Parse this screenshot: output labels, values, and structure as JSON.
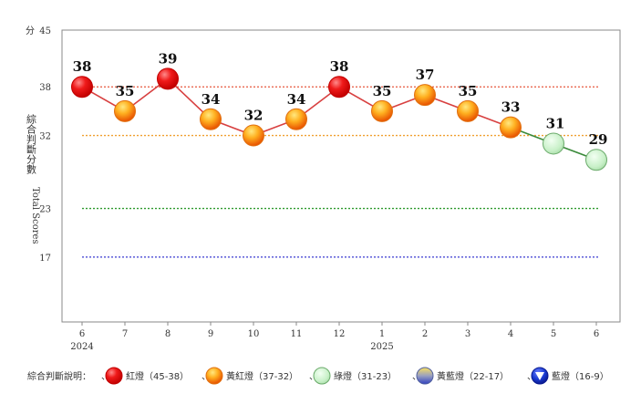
{
  "chart_data": {
    "type": "line",
    "y_unit_label": "分",
    "y_axis_label_cn": "綜合判斷分數",
    "y_axis_label_en": "Total Scores",
    "ylim": [
      9,
      45
    ],
    "y_ticks": [
      45,
      38,
      32,
      23,
      17
    ],
    "thresholds": [
      {
        "value": 38,
        "color": "#e8573c"
      },
      {
        "value": 32,
        "color": "#f0a030"
      },
      {
        "value": 23,
        "color": "#2e9a2e"
      },
      {
        "value": 17,
        "color": "#3a3ad0"
      }
    ],
    "categories": [
      "6",
      "7",
      "8",
      "9",
      "10",
      "11",
      "12",
      "1",
      "2",
      "3",
      "4",
      "5",
      "6"
    ],
    "year_labels": [
      {
        "index": 0,
        "label": "2024"
      },
      {
        "index": 7,
        "label": "2025"
      }
    ],
    "values": [
      38,
      35,
      39,
      34,
      32,
      34,
      38,
      35,
      37,
      35,
      33,
      31,
      29
    ],
    "signals": [
      "red",
      "yellow-red",
      "red",
      "yellow-red",
      "yellow-red",
      "yellow-red",
      "red",
      "yellow-red",
      "yellow-red",
      "yellow-red",
      "yellow-red",
      "green",
      "green"
    ]
  },
  "legend": {
    "title": "綜合判斷說明：",
    "items": [
      {
        "key": "red",
        "label": "紅燈（45-38）"
      },
      {
        "key": "yellow-red",
        "label": "黃紅燈（37-32）"
      },
      {
        "key": "green",
        "label": "綠燈（31-23）"
      },
      {
        "key": "yellow-blue",
        "label": "黃藍燈（22-17）"
      },
      {
        "key": "blue",
        "label": "藍燈（16-9）"
      }
    ]
  },
  "colors": {
    "red_line": "#d84040",
    "green_line": "#3a8a3a",
    "red": "#e01010",
    "yellow_red": "#f6a020",
    "green": "#c8f0c8",
    "blue": "#1a3ad0"
  }
}
